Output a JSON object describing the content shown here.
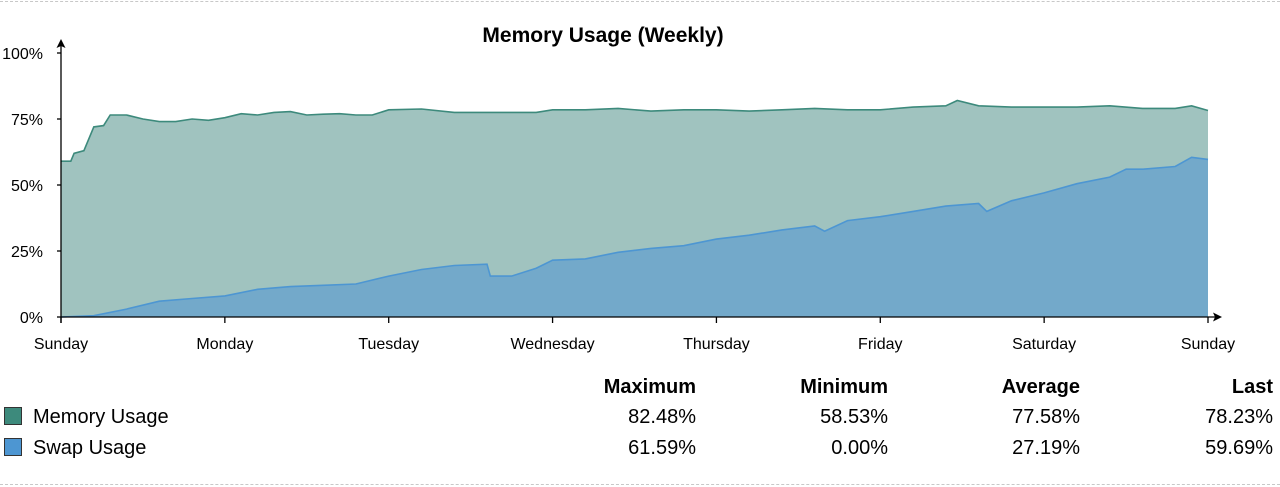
{
  "chart_data": {
    "type": "area",
    "title": "Memory Usage (Weekly)",
    "xlabel": "",
    "ylabel": "",
    "x_ticks": [
      "Sunday",
      "Monday",
      "Tuesday",
      "Wednesday",
      "Thursday",
      "Friday",
      "Saturday",
      "Sunday"
    ],
    "y_ticks": [
      "0%",
      "25%",
      "50%",
      "75%",
      "100%"
    ],
    "ylim": [
      0,
      100
    ],
    "xlim_days": [
      0,
      7
    ],
    "grid": false,
    "series": [
      {
        "name": "Memory Usage",
        "color": "#3d8a7c",
        "fill": "#a0c3bf",
        "points": [
          [
            0.0,
            59
          ],
          [
            0.06,
            59
          ],
          [
            0.08,
            62
          ],
          [
            0.14,
            63
          ],
          [
            0.2,
            72
          ],
          [
            0.26,
            72.5
          ],
          [
            0.3,
            76.5
          ],
          [
            0.4,
            76.5
          ],
          [
            0.5,
            75
          ],
          [
            0.6,
            74
          ],
          [
            0.7,
            74
          ],
          [
            0.8,
            75
          ],
          [
            0.9,
            74.5
          ],
          [
            1.0,
            75.5
          ],
          [
            1.1,
            77
          ],
          [
            1.2,
            76.5
          ],
          [
            1.3,
            77.5
          ],
          [
            1.4,
            77.8
          ],
          [
            1.5,
            76.5
          ],
          [
            1.6,
            76.8
          ],
          [
            1.7,
            77
          ],
          [
            1.8,
            76.5
          ],
          [
            1.9,
            76.5
          ],
          [
            2.0,
            78.5
          ],
          [
            2.2,
            78.8
          ],
          [
            2.4,
            77.5
          ],
          [
            2.6,
            77.5
          ],
          [
            2.8,
            77.5
          ],
          [
            2.9,
            77.5
          ],
          [
            3.0,
            78.5
          ],
          [
            3.2,
            78.5
          ],
          [
            3.4,
            79
          ],
          [
            3.6,
            78
          ],
          [
            3.8,
            78.5
          ],
          [
            4.0,
            78.5
          ],
          [
            4.2,
            78
          ],
          [
            4.4,
            78.5
          ],
          [
            4.6,
            79
          ],
          [
            4.8,
            78.5
          ],
          [
            5.0,
            78.5
          ],
          [
            5.2,
            79.5
          ],
          [
            5.4,
            80
          ],
          [
            5.47,
            82
          ],
          [
            5.6,
            80
          ],
          [
            5.8,
            79.5
          ],
          [
            6.0,
            79.5
          ],
          [
            6.2,
            79.5
          ],
          [
            6.4,
            80
          ],
          [
            6.6,
            79
          ],
          [
            6.8,
            79
          ],
          [
            6.9,
            80
          ],
          [
            7.0,
            78.23
          ]
        ]
      },
      {
        "name": "Swap Usage",
        "color": "#4d96d2",
        "fill": "#73a9ca",
        "points": [
          [
            0.0,
            0
          ],
          [
            0.2,
            0.5
          ],
          [
            0.4,
            3
          ],
          [
            0.6,
            6
          ],
          [
            0.8,
            7
          ],
          [
            1.0,
            8
          ],
          [
            1.2,
            10.5
          ],
          [
            1.4,
            11.5
          ],
          [
            1.6,
            12
          ],
          [
            1.8,
            12.5
          ],
          [
            2.0,
            15.5
          ],
          [
            2.2,
            18
          ],
          [
            2.4,
            19.5
          ],
          [
            2.6,
            20
          ],
          [
            2.62,
            15.5
          ],
          [
            2.75,
            15.5
          ],
          [
            2.9,
            18.5
          ],
          [
            3.0,
            21.5
          ],
          [
            3.2,
            22
          ],
          [
            3.4,
            24.5
          ],
          [
            3.6,
            26
          ],
          [
            3.8,
            27
          ],
          [
            4.0,
            29.5
          ],
          [
            4.2,
            31
          ],
          [
            4.4,
            33
          ],
          [
            4.6,
            34.5
          ],
          [
            4.66,
            32.5
          ],
          [
            4.8,
            36.5
          ],
          [
            5.0,
            38
          ],
          [
            5.2,
            40
          ],
          [
            5.4,
            42
          ],
          [
            5.6,
            43
          ],
          [
            5.65,
            40
          ],
          [
            5.8,
            44
          ],
          [
            6.0,
            47
          ],
          [
            6.2,
            50.5
          ],
          [
            6.4,
            53
          ],
          [
            6.5,
            56
          ],
          [
            6.6,
            56
          ],
          [
            6.8,
            57
          ],
          [
            6.9,
            60.5
          ],
          [
            7.0,
            59.69
          ]
        ]
      }
    ]
  },
  "legend": {
    "headers": [
      "Maximum",
      "Minimum",
      "Average",
      "Last"
    ],
    "rows": [
      {
        "name": "Memory Usage",
        "color": "#3d8a7c",
        "values": [
          "82.48%",
          "58.53%",
          "77.58%",
          "78.23%"
        ]
      },
      {
        "name": "Swap Usage",
        "color": "#4d96d2",
        "values": [
          "61.59%",
          "0.00%",
          "27.19%",
          "59.69%"
        ]
      }
    ]
  }
}
